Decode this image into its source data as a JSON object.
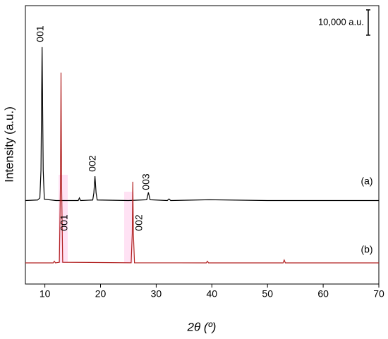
{
  "chart_data": {
    "type": "line",
    "xlabel": "2θ (º)",
    "ylabel": "Intensity (a.u.)",
    "xlim": [
      6.5,
      70
    ],
    "xticks": [
      10,
      20,
      30,
      40,
      50,
      60,
      70
    ],
    "ylim": [
      0,
      110000
    ],
    "scale_bar": {
      "label": "10,000 a.u.",
      "value": 10000
    },
    "series": [
      {
        "name": "(a)",
        "color": "#000000",
        "x": [
          6.5,
          8.7,
          9.1,
          9.3,
          9.5,
          9.7,
          9.9,
          12,
          16.0,
          16.2,
          16.4,
          18.6,
          18.8,
          19.0,
          19.2,
          19.4,
          25,
          28.3,
          28.6,
          28.9,
          32.0,
          32.3,
          32.6,
          39.5,
          50,
          70
        ],
        "values": [
          33000,
          33200,
          34000,
          45000,
          93600,
          45000,
          33500,
          33000,
          33000,
          34000,
          33000,
          33200,
          36000,
          42600,
          36000,
          33200,
          33000,
          33300,
          36200,
          33300,
          33000,
          33600,
          33000,
          33300,
          33000,
          33000
        ]
      },
      {
        "name": "(b)",
        "color": "#b22222",
        "x": [
          6.5,
          11.5,
          11.7,
          11.9,
          12.6,
          12.8,
          12.9,
          13.0,
          13.2,
          25.5,
          25.7,
          25.8,
          25.9,
          26.1,
          39.0,
          39.2,
          39.4,
          52.8,
          53.0,
          53.2,
          70
        ],
        "values": [
          8350,
          8350,
          9000,
          8350,
          8600,
          40000,
          83550,
          40000,
          8600,
          8400,
          20000,
          40400,
          20000,
          8400,
          8350,
          9000,
          8350,
          8350,
          9500,
          8350,
          8350
        ]
      }
    ],
    "annotations": [
      "001",
      "002",
      "003",
      "001",
      "002"
    ]
  }
}
